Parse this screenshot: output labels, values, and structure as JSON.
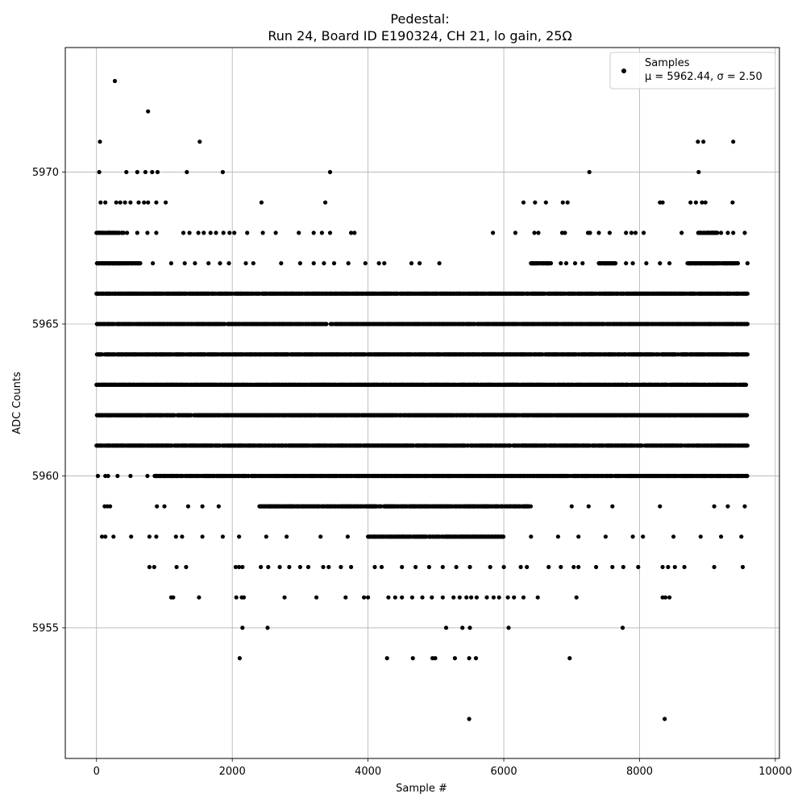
{
  "chart_data": {
    "type": "scatter",
    "title": "Pedestal:",
    "subtitle": "Run 24, Board ID E190324, CH 21, lo gain, 25Ω",
    "xlabel": "Sample #",
    "ylabel": "ADC Counts",
    "xlim": [
      -460,
      10060
    ],
    "ylim": [
      5950.7,
      5974.1
    ],
    "x_ticks": [
      0,
      2000,
      4000,
      6000,
      8000,
      10000
    ],
    "y_ticks": [
      5955,
      5960,
      5965,
      5970
    ],
    "grid": true,
    "legend": {
      "placement": "top-right",
      "series_label": "Samples",
      "stats_label": "μ = 5962.44, σ = 2.50"
    },
    "marker_color": "#000000",
    "n_samples": 9600,
    "series": [
      {
        "name": "Samples",
        "level_bands": [
          {
            "y": 5961,
            "ranges": [
              [
                0,
                9590
              ]
            ]
          },
          {
            "y": 5962,
            "ranges": [
              [
                0,
                9590
              ]
            ]
          },
          {
            "y": 5963,
            "ranges": [
              [
                0,
                9590
              ]
            ]
          },
          {
            "y": 5964,
            "ranges": [
              [
                0,
                9590
              ]
            ]
          },
          {
            "y": 5965,
            "ranges": [
              [
                0,
                9590
              ]
            ]
          },
          {
            "y": 5966,
            "ranges": [
              [
                0,
                9590
              ]
            ]
          },
          {
            "y": 5960,
            "ranges": [
              [
                850,
                9590
              ]
            ]
          },
          {
            "y": 5959,
            "ranges": [
              [
                2400,
                6400
              ]
            ]
          },
          {
            "y": 5958,
            "ranges": [
              [
                4000,
                6000
              ]
            ]
          },
          {
            "y": 5967,
            "ranges": [
              [
                0,
                650
              ],
              [
                6400,
                6700
              ],
              [
                7400,
                7650
              ],
              [
                8700,
                9450
              ]
            ]
          },
          {
            "y": 5968,
            "ranges": [
              [
                0,
                400
              ],
              [
                8850,
                9150
              ]
            ]
          }
        ],
        "points": [
          [
            270,
            5973
          ],
          [
            760,
            5972
          ],
          [
            50,
            5971
          ],
          [
            1520,
            5971
          ],
          [
            8860,
            5971
          ],
          [
            8940,
            5971
          ],
          [
            9380,
            5971
          ],
          [
            40,
            5970
          ],
          [
            440,
            5970
          ],
          [
            600,
            5970
          ],
          [
            720,
            5970
          ],
          [
            820,
            5970
          ],
          [
            900,
            5970
          ],
          [
            1330,
            5970
          ],
          [
            1860,
            5970
          ],
          [
            3440,
            5970
          ],
          [
            7260,
            5970
          ],
          [
            8870,
            5970
          ],
          [
            60,
            5969
          ],
          [
            130,
            5969
          ],
          [
            290,
            5969
          ],
          [
            350,
            5969
          ],
          [
            420,
            5969
          ],
          [
            500,
            5969
          ],
          [
            620,
            5969
          ],
          [
            700,
            5969
          ],
          [
            760,
            5969
          ],
          [
            880,
            5969
          ],
          [
            1020,
            5969
          ],
          [
            2430,
            5969
          ],
          [
            3370,
            5969
          ],
          [
            6290,
            5969
          ],
          [
            6460,
            5969
          ],
          [
            6620,
            5969
          ],
          [
            6870,
            5969
          ],
          [
            6940,
            5969
          ],
          [
            8300,
            5969
          ],
          [
            8340,
            5969
          ],
          [
            8750,
            5969
          ],
          [
            8830,
            5969
          ],
          [
            8920,
            5969
          ],
          [
            8970,
            5969
          ],
          [
            9370,
            5969
          ],
          [
            450,
            5968
          ],
          [
            600,
            5968
          ],
          [
            750,
            5968
          ],
          [
            880,
            5968
          ],
          [
            1280,
            5968
          ],
          [
            1370,
            5968
          ],
          [
            1500,
            5968
          ],
          [
            1580,
            5968
          ],
          [
            1680,
            5968
          ],
          [
            1760,
            5968
          ],
          [
            1870,
            5968
          ],
          [
            1960,
            5968
          ],
          [
            2030,
            5968
          ],
          [
            2220,
            5968
          ],
          [
            2450,
            5968
          ],
          [
            2640,
            5968
          ],
          [
            2980,
            5968
          ],
          [
            3200,
            5968
          ],
          [
            3320,
            5968
          ],
          [
            3440,
            5968
          ],
          [
            3750,
            5968
          ],
          [
            3800,
            5968
          ],
          [
            5840,
            5968
          ],
          [
            6170,
            5968
          ],
          [
            6450,
            5968
          ],
          [
            6510,
            5968
          ],
          [
            6860,
            5968
          ],
          [
            6900,
            5968
          ],
          [
            7240,
            5968
          ],
          [
            7270,
            5968
          ],
          [
            7400,
            5968
          ],
          [
            7560,
            5968
          ],
          [
            7800,
            5968
          ],
          [
            7880,
            5968
          ],
          [
            7940,
            5968
          ],
          [
            8060,
            5968
          ],
          [
            8620,
            5968
          ],
          [
            9200,
            5968
          ],
          [
            9300,
            5968
          ],
          [
            9380,
            5968
          ],
          [
            9550,
            5968
          ],
          [
            830,
            5967
          ],
          [
            1100,
            5967
          ],
          [
            1300,
            5967
          ],
          [
            1450,
            5967
          ],
          [
            1650,
            5967
          ],
          [
            1820,
            5967
          ],
          [
            1950,
            5967
          ],
          [
            2200,
            5967
          ],
          [
            2310,
            5967
          ],
          [
            2720,
            5967
          ],
          [
            3000,
            5967
          ],
          [
            3200,
            5967
          ],
          [
            3350,
            5967
          ],
          [
            3500,
            5967
          ],
          [
            3710,
            5967
          ],
          [
            3960,
            5967
          ],
          [
            4160,
            5967
          ],
          [
            4240,
            5967
          ],
          [
            4640,
            5967
          ],
          [
            4760,
            5967
          ],
          [
            5050,
            5967
          ],
          [
            6840,
            5967
          ],
          [
            6920,
            5967
          ],
          [
            7050,
            5967
          ],
          [
            7160,
            5967
          ],
          [
            7800,
            5967
          ],
          [
            7900,
            5967
          ],
          [
            8100,
            5967
          ],
          [
            8300,
            5967
          ],
          [
            8440,
            5967
          ],
          [
            9590,
            5967
          ],
          [
            20,
            5960
          ],
          [
            130,
            5960
          ],
          [
            170,
            5960
          ],
          [
            310,
            5960
          ],
          [
            500,
            5960
          ],
          [
            750,
            5960
          ],
          [
            120,
            5959
          ],
          [
            160,
            5959
          ],
          [
            200,
            5959
          ],
          [
            890,
            5959
          ],
          [
            1000,
            5959
          ],
          [
            1350,
            5959
          ],
          [
            1560,
            5959
          ],
          [
            1800,
            5959
          ],
          [
            7000,
            5959
          ],
          [
            7250,
            5959
          ],
          [
            7600,
            5959
          ],
          [
            8300,
            5959
          ],
          [
            9100,
            5959
          ],
          [
            9300,
            5959
          ],
          [
            9550,
            5959
          ],
          [
            80,
            5958
          ],
          [
            130,
            5958
          ],
          [
            250,
            5958
          ],
          [
            510,
            5958
          ],
          [
            780,
            5958
          ],
          [
            880,
            5958
          ],
          [
            1170,
            5958
          ],
          [
            1260,
            5958
          ],
          [
            1560,
            5958
          ],
          [
            1860,
            5958
          ],
          [
            2100,
            5958
          ],
          [
            2500,
            5958
          ],
          [
            2800,
            5958
          ],
          [
            3300,
            5958
          ],
          [
            3700,
            5958
          ],
          [
            6400,
            5958
          ],
          [
            6800,
            5958
          ],
          [
            7100,
            5958
          ],
          [
            7500,
            5958
          ],
          [
            7900,
            5958
          ],
          [
            8050,
            5958
          ],
          [
            8500,
            5958
          ],
          [
            8900,
            5958
          ],
          [
            9200,
            5958
          ],
          [
            9500,
            5958
          ],
          [
            780,
            5957
          ],
          [
            850,
            5957
          ],
          [
            1180,
            5957
          ],
          [
            1320,
            5957
          ],
          [
            2050,
            5957
          ],
          [
            2100,
            5957
          ],
          [
            2150,
            5957
          ],
          [
            2420,
            5957
          ],
          [
            2530,
            5957
          ],
          [
            2700,
            5957
          ],
          [
            2840,
            5957
          ],
          [
            3000,
            5957
          ],
          [
            3120,
            5957
          ],
          [
            3340,
            5957
          ],
          [
            3420,
            5957
          ],
          [
            3600,
            5957
          ],
          [
            3750,
            5957
          ],
          [
            4100,
            5957
          ],
          [
            4200,
            5957
          ],
          [
            4500,
            5957
          ],
          [
            4700,
            5957
          ],
          [
            4900,
            5957
          ],
          [
            5100,
            5957
          ],
          [
            5300,
            5957
          ],
          [
            5500,
            5957
          ],
          [
            5800,
            5957
          ],
          [
            6000,
            5957
          ],
          [
            6250,
            5957
          ],
          [
            6340,
            5957
          ],
          [
            6660,
            5957
          ],
          [
            6840,
            5957
          ],
          [
            7030,
            5957
          ],
          [
            7100,
            5957
          ],
          [
            7360,
            5957
          ],
          [
            7600,
            5957
          ],
          [
            7760,
            5957
          ],
          [
            7980,
            5957
          ],
          [
            8340,
            5957
          ],
          [
            8420,
            5957
          ],
          [
            8520,
            5957
          ],
          [
            8660,
            5957
          ],
          [
            9100,
            5957
          ],
          [
            9520,
            5957
          ],
          [
            1100,
            5956
          ],
          [
            1130,
            5956
          ],
          [
            1510,
            5956
          ],
          [
            2060,
            5956
          ],
          [
            2140,
            5956
          ],
          [
            2170,
            5956
          ],
          [
            2770,
            5956
          ],
          [
            3240,
            5956
          ],
          [
            3670,
            5956
          ],
          [
            3940,
            5956
          ],
          [
            4000,
            5956
          ],
          [
            4300,
            5956
          ],
          [
            4400,
            5956
          ],
          [
            4500,
            5956
          ],
          [
            4650,
            5956
          ],
          [
            4800,
            5956
          ],
          [
            4940,
            5956
          ],
          [
            5100,
            5956
          ],
          [
            5260,
            5956
          ],
          [
            5350,
            5956
          ],
          [
            5450,
            5956
          ],
          [
            5520,
            5956
          ],
          [
            5600,
            5956
          ],
          [
            5750,
            5956
          ],
          [
            5850,
            5956
          ],
          [
            5930,
            5956
          ],
          [
            6060,
            5956
          ],
          [
            6150,
            5956
          ],
          [
            6290,
            5956
          ],
          [
            6500,
            5956
          ],
          [
            7070,
            5956
          ],
          [
            8340,
            5956
          ],
          [
            8380,
            5956
          ],
          [
            8440,
            5956
          ],
          [
            2150,
            5955
          ],
          [
            2520,
            5955
          ],
          [
            5150,
            5955
          ],
          [
            5390,
            5955
          ],
          [
            5500,
            5955
          ],
          [
            6070,
            5955
          ],
          [
            7750,
            5955
          ],
          [
            2110,
            5954
          ],
          [
            4280,
            5954
          ],
          [
            4660,
            5954
          ],
          [
            4950,
            5954
          ],
          [
            4990,
            5954
          ],
          [
            5280,
            5954
          ],
          [
            5490,
            5954
          ],
          [
            5590,
            5954
          ],
          [
            6970,
            5954
          ],
          [
            5490,
            5952
          ],
          [
            8370,
            5952
          ]
        ]
      }
    ]
  }
}
